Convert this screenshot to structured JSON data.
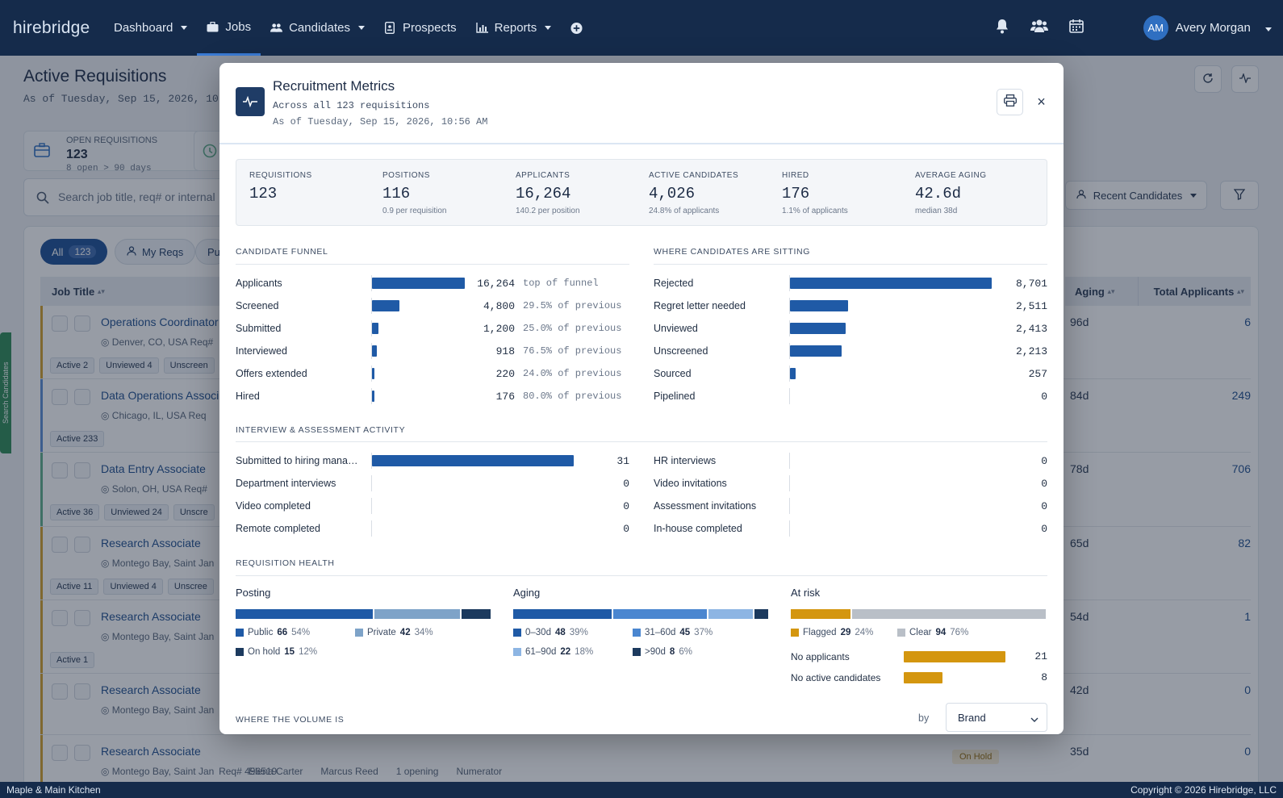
{
  "app": {
    "logo": "hirebridge"
  },
  "nav": [
    {
      "label": "Dashboard",
      "icon": "none",
      "dropdown": true
    },
    {
      "label": "Jobs",
      "icon": "briefcase-icon",
      "dropdown": false,
      "active": true
    },
    {
      "label": "Candidates",
      "icon": "people-icon",
      "dropdown": true
    },
    {
      "label": "Prospects",
      "icon": "badge-icon",
      "dropdown": false
    },
    {
      "label": "Reports",
      "icon": "bar-chart-icon",
      "dropdown": true
    }
  ],
  "user": {
    "initials": "AM",
    "name": "Avery Morgan"
  },
  "page": {
    "title": "Active Requisitions",
    "as_of": "As of Tuesday, Sep 15, 2026, 10",
    "stat": {
      "label": "OPEN REQUISITIONS",
      "value": "123",
      "sub": "8 open > 90 days"
    },
    "search_placeholder": "Search job title, req# or internal",
    "recent_candidates": "Recent Candidates",
    "tabs": {
      "all": "All",
      "all_count": "123",
      "my": "My Reqs",
      "pu": "Pu"
    },
    "columns": {
      "job_title": "Job Title",
      "aging": "Aging",
      "total": "Total Applicants"
    }
  },
  "rows": [
    {
      "title": "Operations Coordinator",
      "loc": "Denver, CO, USA",
      "req": "Req#",
      "tags": [
        "Active 2",
        "Unviewed 4",
        "Unscreen"
      ],
      "aging": "96d",
      "total": "6",
      "accent": "#d4a02a"
    },
    {
      "title": "Data Operations Associ",
      "loc": "Chicago, IL, USA",
      "req": "Req",
      "tags": [
        "Active 233"
      ],
      "aging": "84d",
      "total": "249",
      "accent": "#5b8fd6"
    },
    {
      "title": "Data Entry Associate",
      "loc": "Solon, OH, USA",
      "req": "Req#",
      "tags": [
        "Active 36",
        "Unviewed 24",
        "Unscre"
      ],
      "aging": "78d",
      "total": "706",
      "accent": "#5fb08a"
    },
    {
      "title": "Research Associate",
      "loc": "Montego Bay, Saint Jan",
      "req": "",
      "tags": [
        "Active 11",
        "Unviewed 4",
        "Unscree"
      ],
      "aging": "65d",
      "total": "82",
      "accent": "#d4a02a"
    },
    {
      "title": "Research Associate",
      "loc": "Montego Bay, Saint Jan",
      "req": "",
      "tags": [
        "Active 1"
      ],
      "aging": "54d",
      "total": "1",
      "accent": "#d4a02a"
    },
    {
      "title": "Research Associate",
      "loc": "Montego Bay, Saint Jan",
      "req": "",
      "tags": [],
      "aging": "42d",
      "total": "0",
      "accent": "#d4a02a"
    },
    {
      "title": "Research Associate",
      "loc": "Montego Bay, Saint Jan ",
      "req": "Req# 496519",
      "tags": [],
      "aging": "35d",
      "total": "0",
      "accent": "#d4a02a",
      "extra": {
        "recruiter": "Elena Carter",
        "manager": "Marcus Reed",
        "openings": "1 opening",
        "company": "Numerator",
        "status": "On Hold"
      }
    }
  ],
  "side_tab": "Search Candidates",
  "footer": {
    "left": "Maple & Main Kitchen",
    "right": "Copyright © 2026 Hirebridge, LLC"
  },
  "modal": {
    "title": "Recruitment Metrics",
    "sub1": "Across all 123 requisitions",
    "sub2": "As of Tuesday, Sep 15, 2026, 10:56 AM",
    "close": "×",
    "kpis": [
      {
        "label": "REQUISITIONS",
        "value": "123",
        "sub": ""
      },
      {
        "label": "POSITIONS",
        "value": "116",
        "sub": "0.9 per requisition"
      },
      {
        "label": "APPLICANTS",
        "value": "16,264",
        "sub": "140.2 per position"
      },
      {
        "label": "ACTIVE CANDIDATES",
        "value": "4,026",
        "sub": "24.8% of applicants"
      },
      {
        "label": "HIRED",
        "value": "176",
        "sub": "1.1% of applicants"
      },
      {
        "label": "AVERAGE AGING",
        "value": "42.6d",
        "sub": "median 38d"
      }
    ],
    "funnel": {
      "heading": "CANDIDATE FUNNEL",
      "items": [
        {
          "name": "Applicants",
          "value": 16264,
          "label": "16,264",
          "note": "top of funnel"
        },
        {
          "name": "Screened",
          "value": 4800,
          "label": "4,800",
          "note": "29.5% of previous"
        },
        {
          "name": "Submitted",
          "value": 1200,
          "label": "1,200",
          "note": "25.0% of previous"
        },
        {
          "name": "Interviewed",
          "value": 918,
          "label": "918",
          "note": "76.5% of previous"
        },
        {
          "name": "Offers extended",
          "value": 220,
          "label": "220",
          "note": "24.0% of previous"
        },
        {
          "name": "Hired",
          "value": 176,
          "label": "176",
          "note": "80.0% of previous"
        }
      ]
    },
    "sitting": {
      "heading": "WHERE CANDIDATES ARE SITTING",
      "items": [
        {
          "name": "Rejected",
          "value": 8701,
          "label": "8,701"
        },
        {
          "name": "Regret letter needed",
          "value": 2511,
          "label": "2,511"
        },
        {
          "name": "Unviewed",
          "value": 2413,
          "label": "2,413"
        },
        {
          "name": "Unscreened",
          "value": 2213,
          "label": "2,213"
        },
        {
          "name": "Sourced",
          "value": 257,
          "label": "257"
        },
        {
          "name": "Pipelined",
          "value": 0,
          "label": "0"
        }
      ]
    },
    "activity": {
      "heading": "INTERVIEW & ASSESSMENT ACTIVITY",
      "left": [
        {
          "name": "Submitted to hiring mana…",
          "value": 31,
          "label": "31"
        },
        {
          "name": "Department interviews",
          "value": 0,
          "label": "0"
        },
        {
          "name": "Video completed",
          "value": 0,
          "label": "0"
        },
        {
          "name": "Remote completed",
          "value": 0,
          "label": "0"
        }
      ],
      "right": [
        {
          "name": "HR interviews",
          "value": 0,
          "label": "0"
        },
        {
          "name": "Video invitations",
          "value": 0,
          "label": "0"
        },
        {
          "name": "Assessment invitations",
          "value": 0,
          "label": "0"
        },
        {
          "name": "In-house completed",
          "value": 0,
          "label": "0"
        }
      ]
    },
    "health": {
      "heading": "REQUISITION HEALTH",
      "posting": {
        "title": "Posting",
        "segments": [
          {
            "name": "Public",
            "count": "66",
            "pct": "54%",
            "share": 0.54,
            "color": "#1f5aa6"
          },
          {
            "name": "Private",
            "count": "42",
            "pct": "34%",
            "share": 0.34,
            "color": "#7ea3c8"
          },
          {
            "name": "On hold",
            "count": "15",
            "pct": "12%",
            "share": 0.12,
            "color": "#1c3a5e"
          }
        ]
      },
      "aging": {
        "title": "Aging",
        "segments": [
          {
            "name": "0–30d",
            "count": "48",
            "pct": "39%",
            "share": 0.39,
            "color": "#1f5aa6"
          },
          {
            "name": "31–60d",
            "count": "45",
            "pct": "37%",
            "share": 0.37,
            "color": "#4a86d0"
          },
          {
            "name": "61–90d",
            "count": "22",
            "pct": "18%",
            "share": 0.18,
            "color": "#8db5e3"
          },
          {
            "name": ">90d",
            "count": "8",
            "pct": "6%",
            "share": 0.06,
            "color": "#1c3a5e"
          }
        ]
      },
      "risk": {
        "title": "At risk",
        "segments": [
          {
            "name": "Flagged",
            "count": "29",
            "pct": "24%",
            "share": 0.24,
            "color": "#d4960f"
          },
          {
            "name": "Clear",
            "count": "94",
            "pct": "76%",
            "share": 0.76,
            "color": "#b9bfc7"
          }
        ],
        "items": [
          {
            "name": "No applicants",
            "value": 21,
            "label": "21"
          },
          {
            "name": "No active candidates",
            "value": 8,
            "label": "8"
          }
        ]
      }
    },
    "volume": {
      "heading": "WHERE THE VOLUME IS",
      "by": "by",
      "select": "Brand"
    }
  }
}
